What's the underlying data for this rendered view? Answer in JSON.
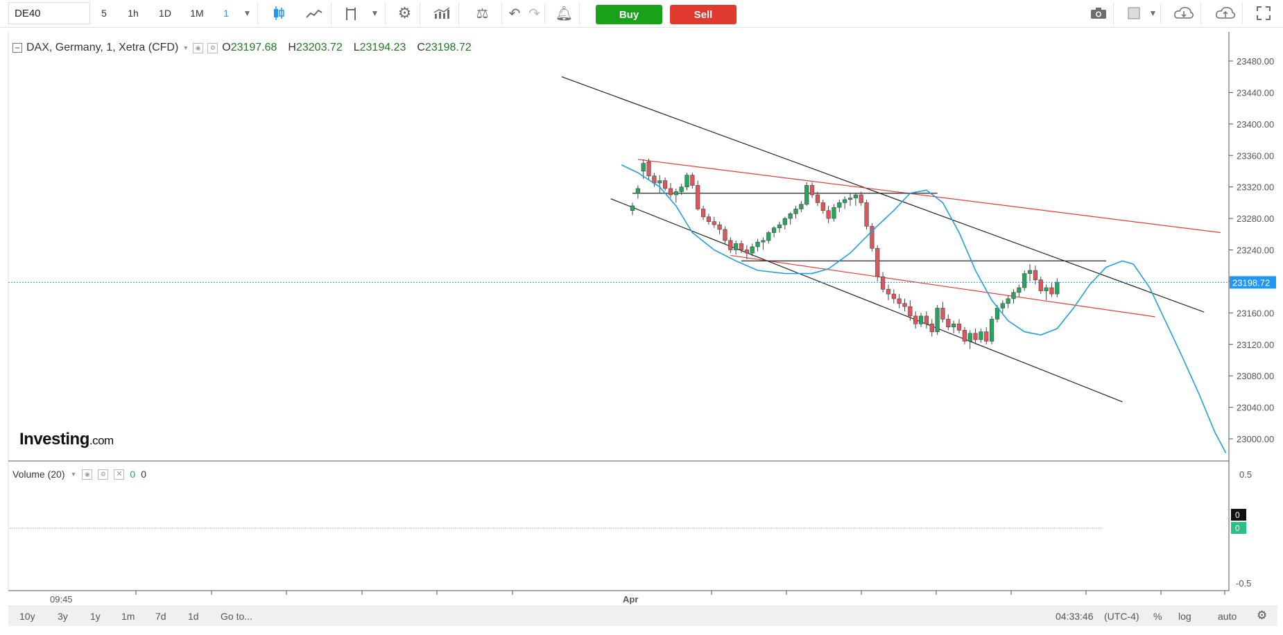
{
  "toolbar": {
    "symbol": "DE40",
    "intervals": [
      "5",
      "1h",
      "1D",
      "1M",
      "1"
    ],
    "active_interval": "1",
    "buy_label": "Buy",
    "sell_label": "Sell"
  },
  "legend": {
    "title": "DAX, Germany, 1, Xetra (CFD)",
    "open_label": "O",
    "open": "23197.68",
    "high_label": "H",
    "high": "23203.72",
    "low_label": "L",
    "low": "23194.23",
    "close_label": "C",
    "close": "23198.72"
  },
  "volume": {
    "title": "Volume (20)",
    "val1": "0",
    "val2": "0",
    "axis_top": "0.5",
    "axis_bottom": "-0.5",
    "badge1": "0",
    "badge2": "0"
  },
  "logo": {
    "main": "Investing",
    "suffix": ".com"
  },
  "x_labels": [
    "09:45",
    "Apr"
  ],
  "bottom": {
    "ranges": [
      "10y",
      "3y",
      "1y",
      "1m",
      "7d",
      "1d",
      "Go to..."
    ],
    "time": "04:33:46",
    "tz": "(UTC-4)",
    "pct": "%",
    "log": "log",
    "auto": "auto"
  },
  "colors": {
    "up": "#26a65b",
    "down": "#e0555a",
    "ma": "#1e9fe0",
    "trend_black": "#222222",
    "trend_red": "#e53935",
    "last_price": "#2196f3"
  },
  "chart_data": {
    "type": "candlestick",
    "y_ticks": [
      23480,
      23440,
      23400,
      23360,
      23320,
      23280,
      23240,
      23200,
      23160,
      23120,
      23080,
      23040,
      23000
    ],
    "ylim": [
      22960,
      23500
    ],
    "last_price": "23198.72",
    "candles": [
      [
        23290,
        23300,
        23284,
        23296
      ],
      [
        23312,
        23322,
        23305,
        23318
      ],
      [
        23340,
        23355,
        23330,
        23350
      ],
      [
        23352,
        23356,
        23330,
        23334
      ],
      [
        23334,
        23338,
        23320,
        23325
      ],
      [
        23325,
        23335,
        23312,
        23328
      ],
      [
        23328,
        23332,
        23315,
        23318
      ],
      [
        23318,
        23325,
        23306,
        23310
      ],
      [
        23310,
        23318,
        23300,
        23314
      ],
      [
        23314,
        23324,
        23310,
        23320
      ],
      [
        23320,
        23338,
        23316,
        23335
      ],
      [
        23335,
        23338,
        23318,
        23322
      ],
      [
        23322,
        23328,
        23290,
        23292
      ],
      [
        23292,
        23296,
        23278,
        23282
      ],
      [
        23282,
        23286,
        23272,
        23276
      ],
      [
        23276,
        23282,
        23268,
        23272
      ],
      [
        23272,
        23276,
        23260,
        23266
      ],
      [
        23266,
        23270,
        23248,
        23252
      ],
      [
        23252,
        23256,
        23236,
        23240
      ],
      [
        23240,
        23252,
        23234,
        23248
      ],
      [
        23248,
        23252,
        23236,
        23240
      ],
      [
        23240,
        23246,
        23228,
        23236
      ],
      [
        23236,
        23248,
        23232,
        23244
      ],
      [
        23244,
        23254,
        23238,
        23250
      ],
      [
        23250,
        23256,
        23240,
        23252
      ],
      [
        23252,
        23264,
        23248,
        23262
      ],
      [
        23262,
        23270,
        23256,
        23268
      ],
      [
        23268,
        23276,
        23262,
        23272
      ],
      [
        23272,
        23282,
        23266,
        23280
      ],
      [
        23280,
        23288,
        23272,
        23286
      ],
      [
        23286,
        23296,
        23280,
        23292
      ],
      [
        23292,
        23302,
        23288,
        23298
      ],
      [
        23298,
        23326,
        23296,
        23322
      ],
      [
        23322,
        23326,
        23306,
        23310
      ],
      [
        23310,
        23314,
        23296,
        23300
      ],
      [
        23300,
        23304,
        23286,
        23290
      ],
      [
        23290,
        23296,
        23274,
        23280
      ],
      [
        23280,
        23298,
        23276,
        23294
      ],
      [
        23294,
        23304,
        23288,
        23300
      ],
      [
        23300,
        23308,
        23292,
        23304
      ],
      [
        23304,
        23312,
        23296,
        23306
      ],
      [
        23306,
        23312,
        23296,
        23310
      ],
      [
        23310,
        23314,
        23296,
        23300
      ],
      [
        23300,
        23304,
        23266,
        23270
      ],
      [
        23270,
        23274,
        23238,
        23242
      ],
      [
        23242,
        23246,
        23200,
        23206
      ],
      [
        23206,
        23212,
        23186,
        23190
      ],
      [
        23190,
        23196,
        23176,
        23184
      ],
      [
        23184,
        23190,
        23172,
        23178
      ],
      [
        23178,
        23184,
        23166,
        23172
      ],
      [
        23172,
        23178,
        23162,
        23168
      ],
      [
        23168,
        23176,
        23150,
        23156
      ],
      [
        23156,
        23162,
        23140,
        23146
      ],
      [
        23146,
        23160,
        23142,
        23156
      ],
      [
        23156,
        23162,
        23140,
        23146
      ],
      [
        23146,
        23152,
        23130,
        23136
      ],
      [
        23136,
        23170,
        23132,
        23166
      ],
      [
        23166,
        23174,
        23148,
        23152
      ],
      [
        23152,
        23158,
        23138,
        23142
      ],
      [
        23142,
        23150,
        23134,
        23146
      ],
      [
        23146,
        23152,
        23134,
        23138
      ],
      [
        23138,
        23142,
        23120,
        23124
      ],
      [
        23124,
        23138,
        23114,
        23134
      ],
      [
        23134,
        23140,
        23120,
        23126
      ],
      [
        23126,
        23140,
        23122,
        23136
      ],
      [
        23136,
        23142,
        23120,
        23124
      ],
      [
        23124,
        23156,
        23120,
        23152
      ],
      [
        23152,
        23170,
        23148,
        23166
      ],
      [
        23166,
        23176,
        23160,
        23172
      ],
      [
        23172,
        23182,
        23166,
        23178
      ],
      [
        23178,
        23190,
        23172,
        23186
      ],
      [
        23186,
        23196,
        23180,
        23192
      ],
      [
        23192,
        23214,
        23188,
        23210
      ],
      [
        23210,
        23222,
        23200,
        23214
      ],
      [
        23214,
        23220,
        23196,
        23202
      ],
      [
        23202,
        23206,
        23184,
        23188
      ],
      [
        23188,
        23196,
        23176,
        23192
      ],
      [
        23192,
        23198,
        23180,
        23184
      ],
      [
        23184,
        23204,
        23180,
        23199
      ]
    ],
    "moving_average": [
      [
        23348,
        0
      ],
      [
        23338,
        3
      ],
      [
        23320,
        7
      ],
      [
        23296,
        10
      ],
      [
        23262,
        13
      ],
      [
        23240,
        17
      ],
      [
        23226,
        21
      ],
      [
        23214,
        25
      ],
      [
        23210,
        30
      ],
      [
        23210,
        35
      ],
      [
        23216,
        38
      ],
      [
        23236,
        42
      ],
      [
        23264,
        46
      ],
      [
        23290,
        50
      ],
      [
        23312,
        53
      ],
      [
        23316,
        56
      ],
      [
        23300,
        59
      ],
      [
        23262,
        62
      ],
      [
        23214,
        65
      ],
      [
        23176,
        68
      ],
      [
        23150,
        71
      ],
      [
        23136,
        74
      ],
      [
        23132,
        77
      ],
      [
        23140,
        80
      ],
      [
        23166,
        83
      ],
      [
        23196,
        86
      ],
      [
        23218,
        89
      ],
      [
        23226,
        92
      ],
      [
        23222,
        94
      ],
      [
        23192,
        97
      ],
      [
        23148,
        100
      ],
      [
        23104,
        103
      ],
      [
        23058,
        106
      ],
      [
        23008,
        109
      ],
      [
        22982,
        111
      ]
    ],
    "trendlines": [
      {
        "color": "black",
        "p1": [
          -13,
          23460
        ],
        "p2": [
          105,
          23161
        ]
      },
      {
        "color": "black",
        "p1": [
          -4,
          23305
        ],
        "p2": [
          90,
          23047
        ]
      },
      {
        "color": "red",
        "p1": [
          1,
          23355
        ],
        "p2": [
          108,
          23262
        ]
      },
      {
        "color": "red",
        "p1": [
          18,
          23233
        ],
        "p2": [
          96,
          23155
        ]
      },
      {
        "color": "black",
        "p1": [
          0,
          23312
        ],
        "p2": [
          56,
          23312
        ]
      },
      {
        "color": "black",
        "p1": [
          20,
          23226
        ],
        "p2": [
          87,
          23226
        ]
      }
    ]
  }
}
